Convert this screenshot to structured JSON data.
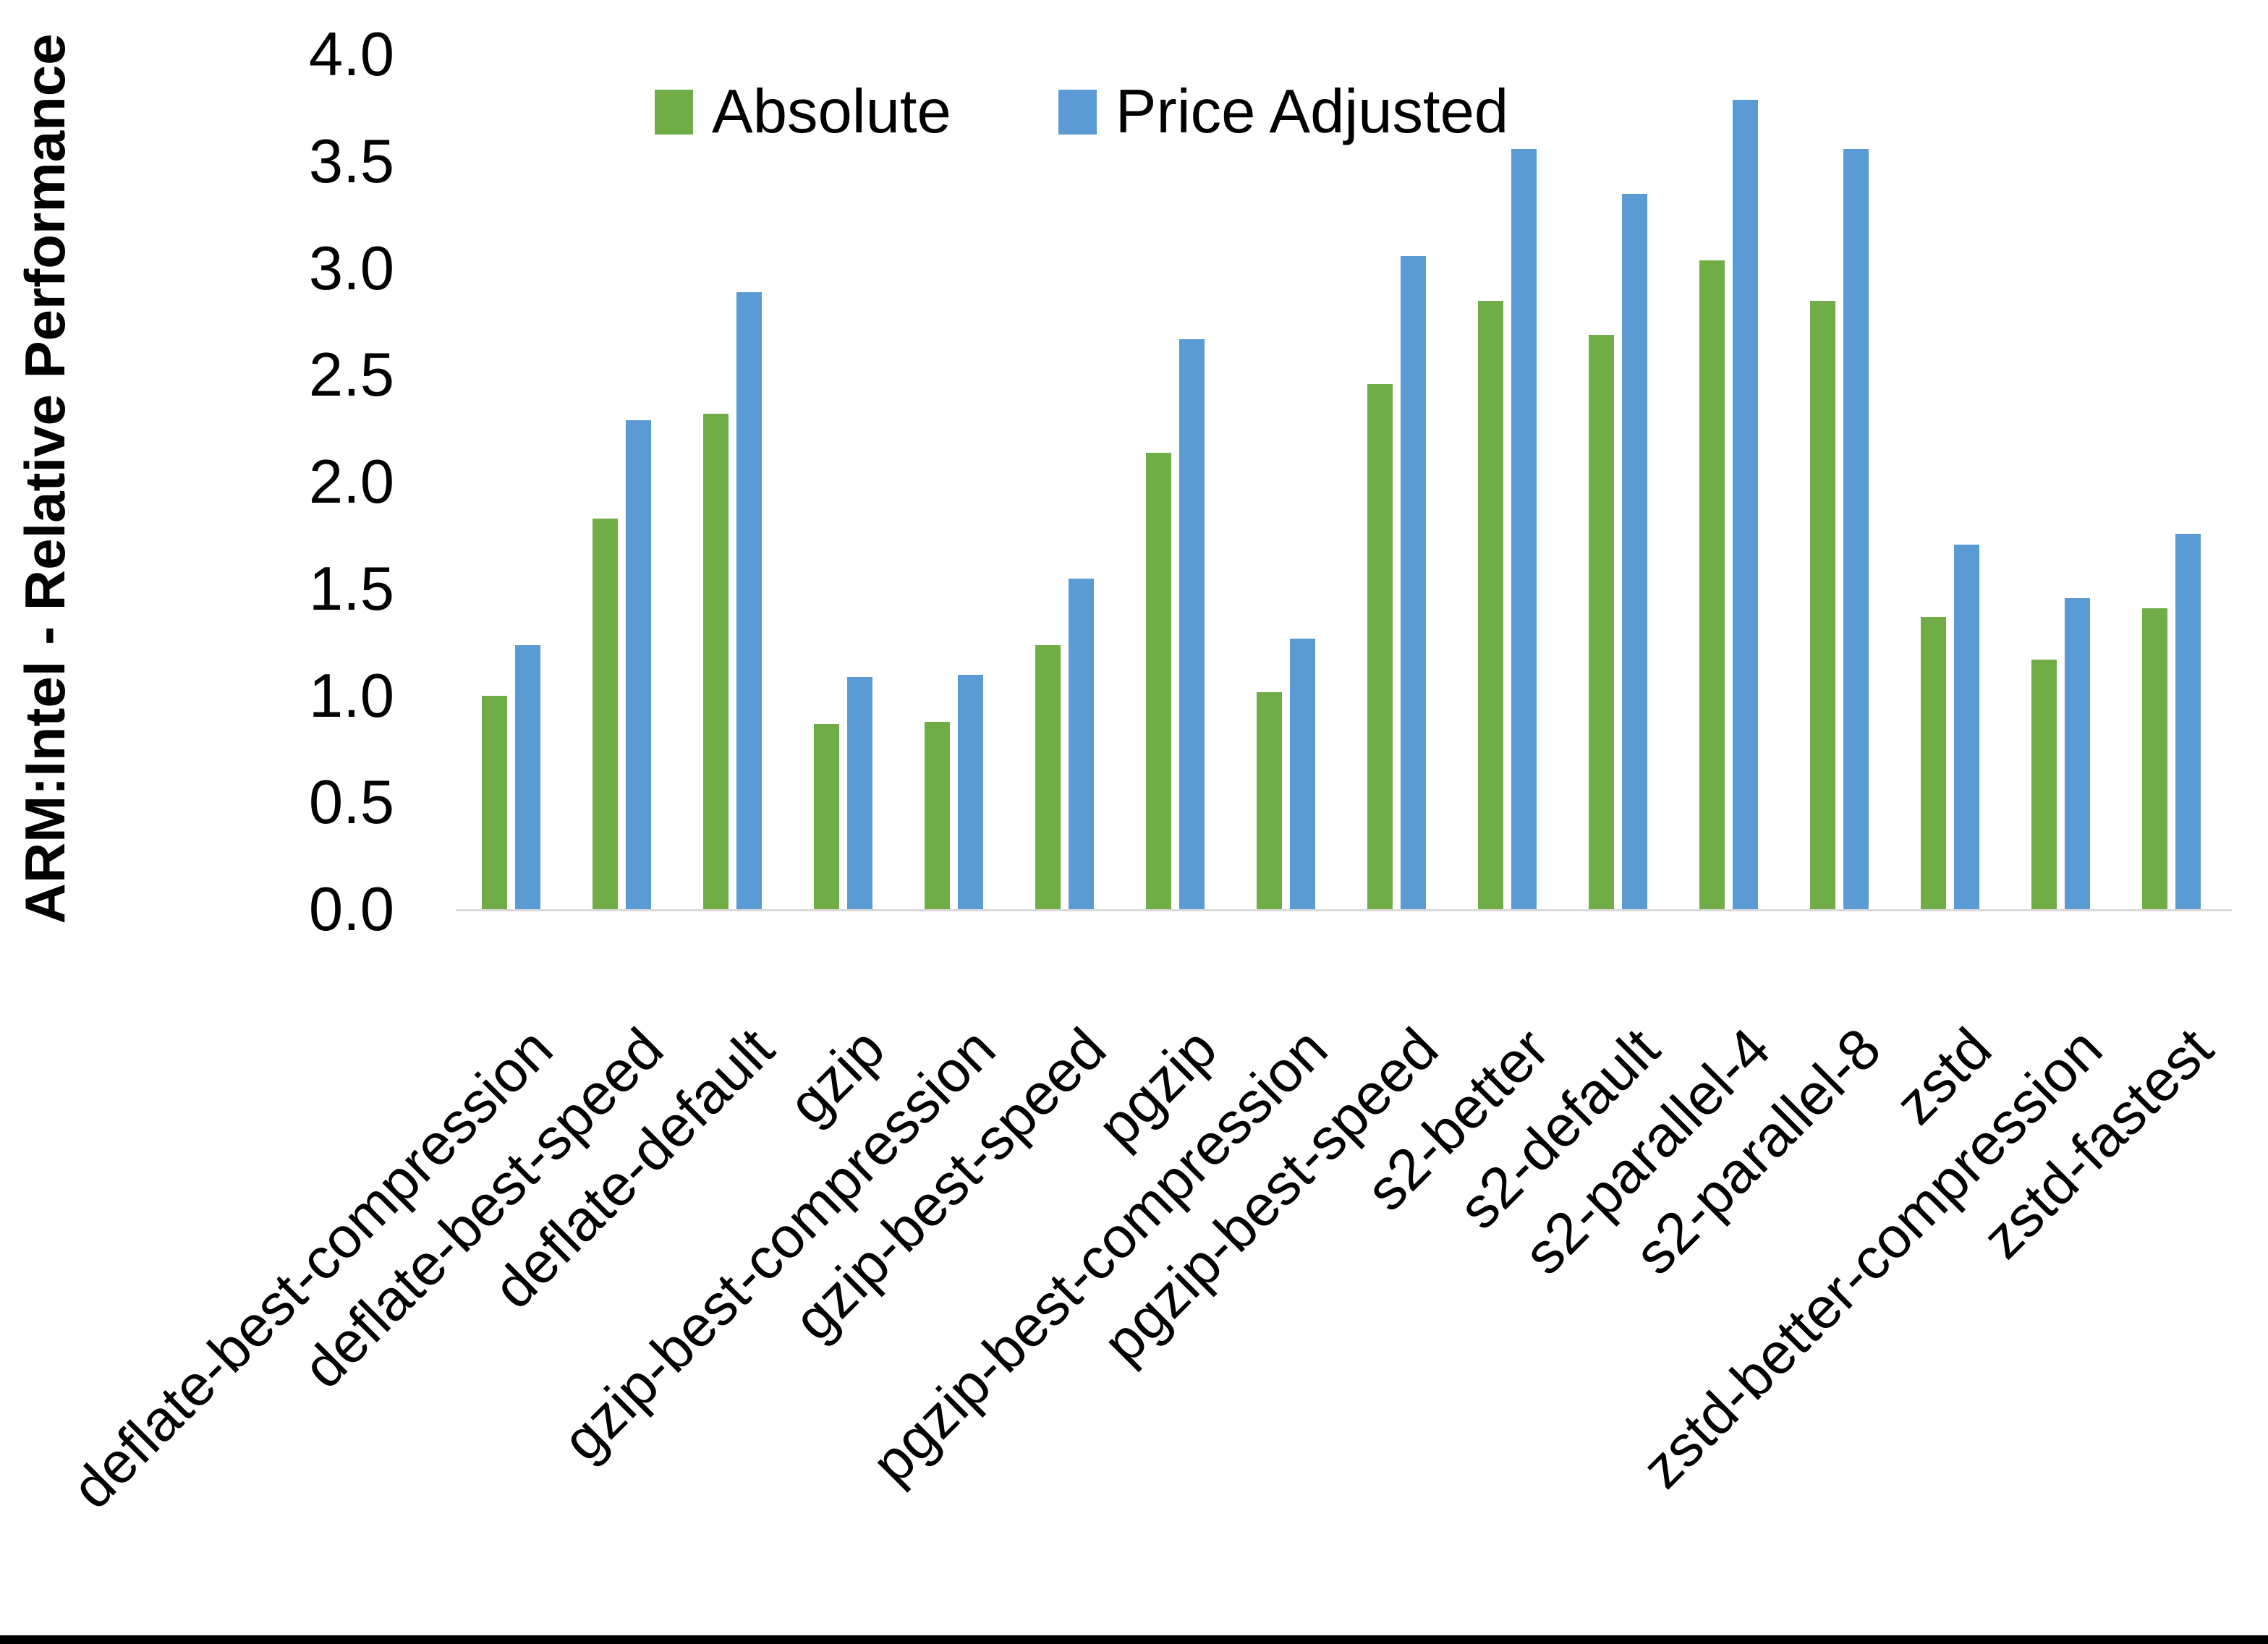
{
  "chart_data": {
    "type": "bar",
    "title": "",
    "xlabel": "",
    "ylabel": "ARM:Intel - Relative Performance",
    "ylim": [
      0.0,
      4.0
    ],
    "ytick_step": 0.5,
    "ytick_labels": [
      "0.0",
      "0.5",
      "1.0",
      "1.5",
      "2.0",
      "2.5",
      "3.0",
      "3.5",
      "4.0"
    ],
    "grid": false,
    "legend_position": "top-center-inside",
    "categories": [
      "deflate-best-compression",
      "deflate-best-speed",
      "deflate-default",
      "gzip",
      "gzip-best-compression",
      "gzip-best-speed",
      "pgzip",
      "pgzip-best-compression",
      "pgzip-best-speed",
      "s2-better",
      "s2-default",
      "s2-parallel-4",
      "s2-parallel-8",
      "zstd",
      "zstd-better-compression",
      "zstd-fastest"
    ],
    "series": [
      {
        "name": "Absolute",
        "color": "#70AD47",
        "values": [
          1.0,
          1.83,
          2.32,
          0.87,
          0.88,
          1.24,
          2.14,
          1.02,
          2.46,
          2.85,
          2.69,
          3.04,
          2.85,
          1.37,
          1.17,
          1.41
        ]
      },
      {
        "name": "Price Adjusted",
        "color": "#5B9BD5",
        "values": [
          1.24,
          2.29,
          2.89,
          1.09,
          1.1,
          1.55,
          2.67,
          1.27,
          3.06,
          3.56,
          3.35,
          3.79,
          3.56,
          1.71,
          1.46,
          1.76
        ]
      }
    ],
    "colors": {
      "axis_line": "#D9D9D9",
      "text": "#000000",
      "background": "#FFFFFF",
      "bottom_edge_bar": "#000000"
    }
  }
}
